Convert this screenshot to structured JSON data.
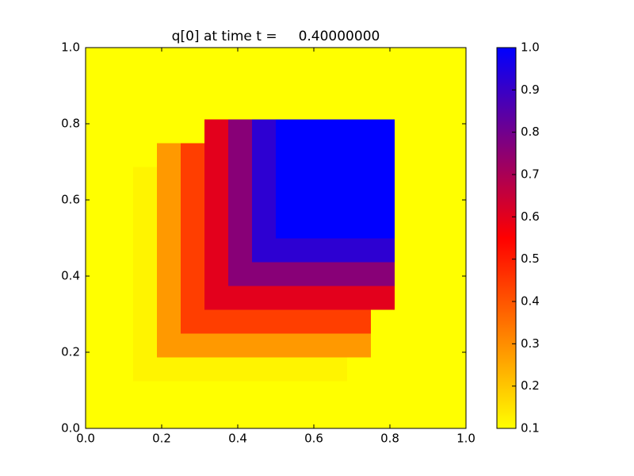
{
  "chart_data": {
    "type": "heatmap",
    "title": "q[0] at time t =     0.40000000",
    "xlim": [
      0,
      1
    ],
    "ylim": [
      0,
      1
    ],
    "xticks": [
      {
        "value": 0,
        "label": "0.0"
      },
      0.2,
      0.4,
      0.6,
      0.8,
      {
        "value": 1,
        "label": "1.0"
      }
    ],
    "yticks": [
      {
        "value": 0,
        "label": "0.0"
      },
      0.2,
      0.4,
      0.6,
      0.8,
      {
        "value": 1,
        "label": "1.0"
      }
    ],
    "clim": [
      0.1,
      1
    ],
    "cticks": [
      0.1,
      0.2,
      0.3,
      0.4,
      0.5,
      0.6,
      0.7,
      0.8,
      0.9,
      {
        "value": 1,
        "label": "1.0"
      }
    ],
    "colors": [
      "#ffff00",
      "#ff0000",
      "#0000ff"
    ],
    "z": [
      [
        0.1,
        0.1,
        0.1,
        0.1,
        0.1,
        0.1,
        0.1,
        0.1,
        0.1,
        0.1,
        0.1,
        0.1,
        0.1,
        0.1,
        0.1,
        0.1
      ],
      [
        0.1,
        0.1,
        0.1,
        0.1,
        0.1,
        0.1,
        0.1,
        0.1,
        0.1,
        0.1,
        0.1,
        0.1,
        0.1,
        0.1,
        0.1,
        0.1
      ],
      [
        0.1,
        0.1,
        0.12,
        0.12,
        0.12,
        0.12,
        0.12,
        0.12,
        0.12,
        0.12,
        0.12,
        0.1,
        0.1,
        0.1,
        0.1,
        0.1
      ],
      [
        0.1,
        0.1,
        0.12,
        0.28,
        0.28,
        0.28,
        0.28,
        0.28,
        0.28,
        0.28,
        0.28,
        0.28,
        0.1,
        0.1,
        0.1,
        0.1
      ],
      [
        0.1,
        0.1,
        0.12,
        0.28,
        0.44,
        0.44,
        0.44,
        0.44,
        0.44,
        0.44,
        0.44,
        0.44,
        0.1,
        0.1,
        0.1,
        0.1
      ],
      [
        0.1,
        0.1,
        0.12,
        0.28,
        0.44,
        0.6,
        0.6,
        0.6,
        0.6,
        0.6,
        0.6,
        0.6,
        0.6,
        0.1,
        0.1,
        0.1
      ],
      [
        0.1,
        0.1,
        0.12,
        0.28,
        0.44,
        0.6,
        0.76,
        0.76,
        0.76,
        0.76,
        0.76,
        0.76,
        0.76,
        0.1,
        0.1,
        0.1
      ],
      [
        0.1,
        0.1,
        0.12,
        0.28,
        0.44,
        0.6,
        0.76,
        0.92,
        0.92,
        0.92,
        0.92,
        0.92,
        0.92,
        0.1,
        0.1,
        0.1
      ],
      [
        0.1,
        0.1,
        0.12,
        0.28,
        0.44,
        0.6,
        0.76,
        0.92,
        1,
        1,
        1,
        1,
        1,
        0.1,
        0.1,
        0.1
      ],
      [
        0.1,
        0.1,
        0.12,
        0.28,
        0.44,
        0.6,
        0.76,
        0.92,
        1,
        1,
        1,
        1,
        1,
        0.1,
        0.1,
        0.1
      ],
      [
        0.1,
        0.1,
        0.12,
        0.28,
        0.44,
        0.6,
        0.76,
        0.92,
        1,
        1,
        1,
        1,
        1,
        0.1,
        0.1,
        0.1
      ],
      [
        0.1,
        0.1,
        0.1,
        0.28,
        0.44,
        0.6,
        0.76,
        0.92,
        1,
        1,
        1,
        1,
        1,
        0.1,
        0.1,
        0.1
      ],
      [
        0.1,
        0.1,
        0.1,
        0.1,
        0.1,
        0.6,
        0.76,
        0.92,
        1,
        1,
        1,
        1,
        1,
        0.1,
        0.1,
        0.1
      ],
      [
        0.1,
        0.1,
        0.1,
        0.1,
        0.1,
        0.1,
        0.1,
        0.1,
        0.1,
        0.1,
        0.1,
        0.1,
        0.1,
        0.1,
        0.1,
        0.1
      ],
      [
        0.1,
        0.1,
        0.1,
        0.1,
        0.1,
        0.1,
        0.1,
        0.1,
        0.1,
        0.1,
        0.1,
        0.1,
        0.1,
        0.1,
        0.1,
        0.1
      ],
      [
        0.1,
        0.1,
        0.1,
        0.1,
        0.1,
        0.1,
        0.1,
        0.1,
        0.1,
        0.1,
        0.1,
        0.1,
        0.1,
        0.1,
        0.1,
        0.1
      ]
    ]
  }
}
